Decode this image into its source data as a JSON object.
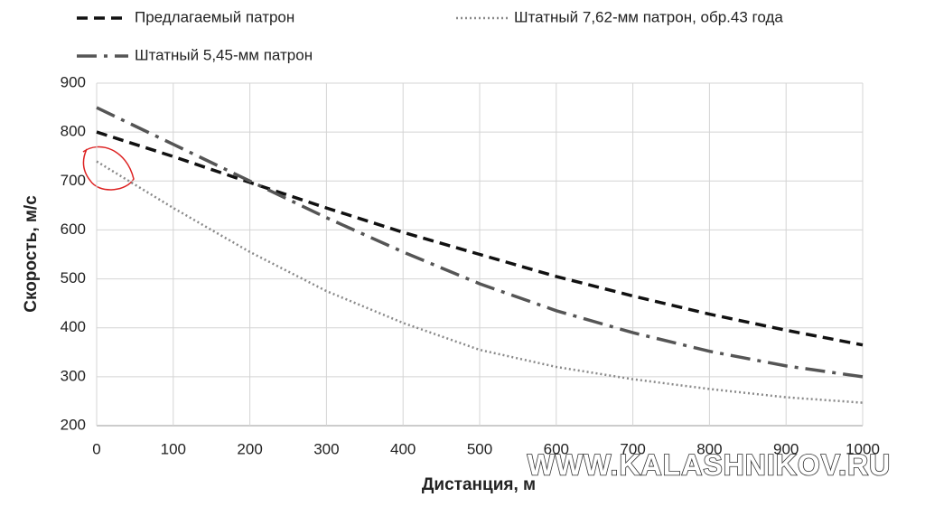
{
  "chart_data": {
    "type": "line",
    "x": [
      0,
      100,
      200,
      300,
      400,
      500,
      600,
      700,
      800,
      900,
      1000
    ],
    "series": [
      {
        "name": "Предлагаемый патрон",
        "color": "#111111",
        "dash": "dashed",
        "values": [
          800,
          750,
          697,
          645,
          595,
          550,
          505,
          465,
          428,
          395,
          365
        ]
      },
      {
        "name": "Штатный 7,62-мм патрон, обр.43 года",
        "color": "#8a8a8a",
        "dash": "dotted",
        "values": [
          740,
          645,
          555,
          475,
          410,
          355,
          320,
          295,
          275,
          258,
          247
        ]
      },
      {
        "name": "Штатный 5,45-мм патрон",
        "color": "#555555",
        "dash": "dashdot",
        "values": [
          850,
          775,
          700,
          625,
          555,
          490,
          435,
          390,
          352,
          322,
          300
        ]
      }
    ],
    "xlim": [
      0,
      1000
    ],
    "xticks": [
      0,
      100,
      200,
      300,
      400,
      500,
      600,
      700,
      800,
      900,
      1000
    ],
    "ylim": [
      200,
      900
    ],
    "yticks": [
      200,
      300,
      400,
      500,
      600,
      700,
      800,
      900
    ],
    "x_label": "Дистанция, м",
    "y_label": "Скорость, м/с",
    "grid": true,
    "legend": "top",
    "watermark": "WWW.KALASHNIKOV.RU"
  }
}
